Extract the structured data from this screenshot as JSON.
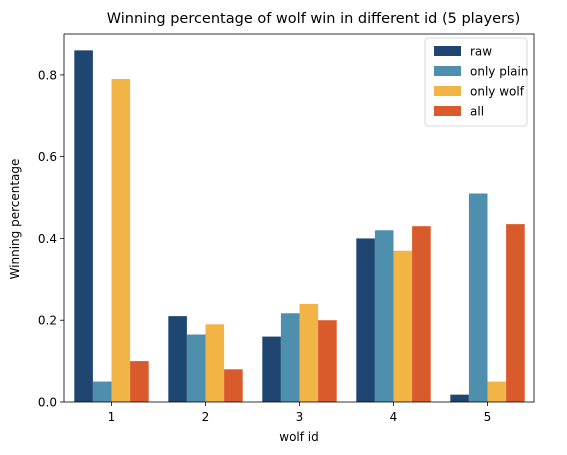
{
  "chart_data": {
    "type": "bar",
    "title": "Winning percentage of wolf win in different id (5 players)",
    "xlabel": "wolf id",
    "ylabel": "Winning percentage",
    "categories": [
      "1",
      "2",
      "3",
      "4",
      "5"
    ],
    "ylim": [
      0,
      0.9
    ],
    "yticks": [
      "0.0",
      "0.2",
      "0.4",
      "0.6",
      "0.8"
    ],
    "legend_position": "top-right",
    "grid": false,
    "series": [
      {
        "name": "raw",
        "color": "#1f4670",
        "values": [
          0.86,
          0.21,
          0.16,
          0.4,
          0.018
        ]
      },
      {
        "name": "only plain",
        "color": "#4f8fae",
        "values": [
          0.05,
          0.165,
          0.217,
          0.42,
          0.51
        ]
      },
      {
        "name": "only wolf",
        "color": "#f2b545",
        "values": [
          0.79,
          0.19,
          0.24,
          0.37,
          0.05
        ]
      },
      {
        "name": "all",
        "color": "#d95a2b",
        "values": [
          0.1,
          0.08,
          0.2,
          0.43,
          0.435
        ]
      }
    ]
  }
}
